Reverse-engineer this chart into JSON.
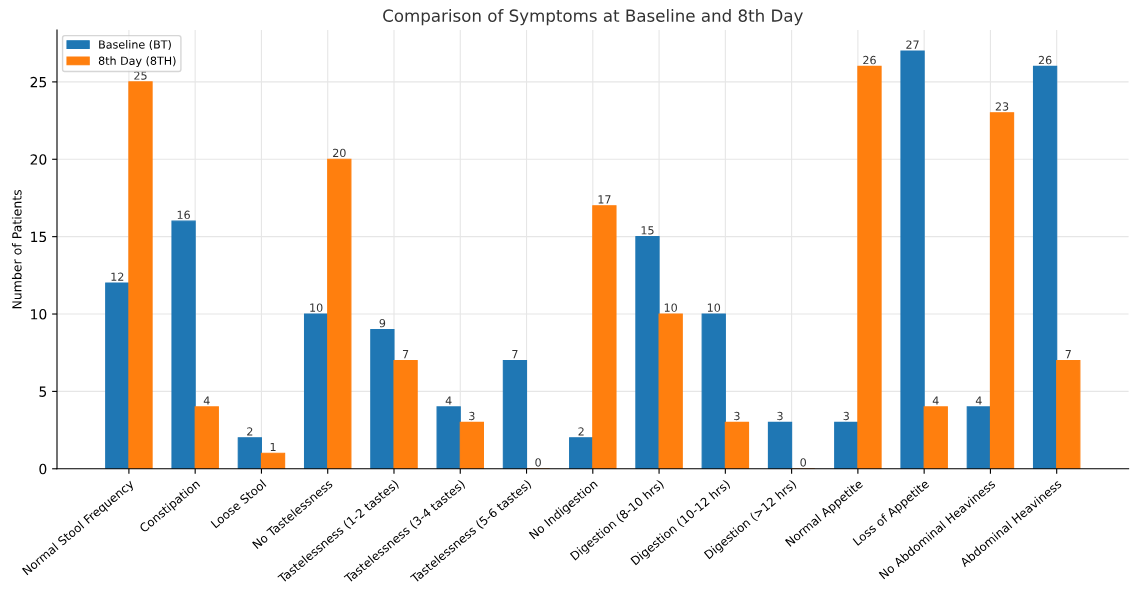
{
  "chart_data": {
    "type": "bar",
    "title": "Comparison of Symptoms at Baseline and 8th Day",
    "ylabel": "Number of Patients",
    "categories": [
      "Normal Stool Frequency",
      "Constipation",
      "Loose Stool",
      "No Tastelessness",
      "Tastelessness (1-2 tastes)",
      "Tastelessness (3-4 tastes)",
      "Tastelessness (5-6 tastes)",
      "No Indigestion",
      "Digestion (8-10 hrs)",
      "Digestion (10-12 hrs)",
      "Digestion (>12 hrs)",
      "Normal Appetite",
      "Loss of Appetite",
      "No Abdominal Heaviness",
      "Abdominal Heaviness"
    ],
    "series": [
      {
        "name": "Baseline (BT)",
        "color": "#1f77b4",
        "values": [
          12,
          16,
          2,
          10,
          9,
          4,
          7,
          2,
          15,
          10,
          3,
          3,
          27,
          4,
          26
        ]
      },
      {
        "name": "8th Day (8TH)",
        "color": "#ff7f0e",
        "values": [
          25,
          4,
          1,
          20,
          7,
          3,
          0,
          17,
          10,
          3,
          0,
          26,
          4,
          23,
          7
        ]
      }
    ],
    "ylim": [
      0,
      28.35
    ],
    "yticks": [
      0,
      5,
      10,
      15,
      20,
      25
    ],
    "grid": true,
    "legend": "top left",
    "data_labels": true
  }
}
